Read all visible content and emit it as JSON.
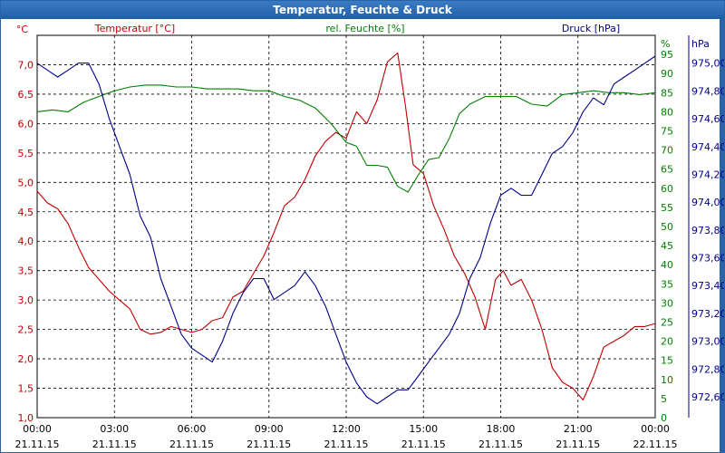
{
  "window": {
    "title": "Temperatur, Feuchte & Druck"
  },
  "chart_data": {
    "type": "line",
    "title": "Temperatur, Feuchte & Druck",
    "x_ticks": [
      {
        "time": "00:00",
        "date": "21.11.15"
      },
      {
        "time": "03:00",
        "date": "21.11.15"
      },
      {
        "time": "06:00",
        "date": "21.11.15"
      },
      {
        "time": "09:00",
        "date": "21.11.15"
      },
      {
        "time": "12:00",
        "date": "21.11.15"
      },
      {
        "time": "15:00",
        "date": "21.11.15"
      },
      {
        "time": "18:00",
        "date": "21.11.15"
      },
      {
        "time": "21:00",
        "date": "21.11.15"
      },
      {
        "time": "00:00",
        "date": "22.11.15"
      }
    ],
    "xlim_hours": [
      0,
      24
    ],
    "axes": {
      "left": {
        "unit": "°C",
        "ylim": [
          1.0,
          7.5
        ],
        "ticks": [
          "1,0",
          "1,5",
          "2,0",
          "2,5",
          "3,0",
          "3,5",
          "4,0",
          "4,5",
          "5,0",
          "5,5",
          "6,0",
          "6,5",
          "7,0"
        ],
        "values": [
          1.0,
          1.5,
          2.0,
          2.5,
          3.0,
          3.5,
          4.0,
          4.5,
          5.0,
          5.5,
          6.0,
          6.5,
          7.0
        ],
        "color": "#c00000"
      },
      "mid": {
        "unit": "%",
        "ylim": [
          0,
          100
        ],
        "ticks": [
          "0",
          "5",
          "10",
          "15",
          "20",
          "25",
          "30",
          "35",
          "40",
          "45",
          "50",
          "55",
          "60",
          "65",
          "70",
          "75",
          "80",
          "85",
          "90",
          "95"
        ],
        "values": [
          0,
          5,
          10,
          15,
          20,
          25,
          30,
          35,
          40,
          45,
          50,
          55,
          60,
          65,
          70,
          75,
          80,
          85,
          90,
          95
        ],
        "color": "#008000"
      },
      "right": {
        "unit": "hPa",
        "ylim": [
          972.45,
          975.2
        ],
        "ticks": [
          "972,60",
          "972,80",
          "973,00",
          "973,20",
          "973,40",
          "973,60",
          "973,80",
          "974,00",
          "974,20",
          "974,40",
          "974,60",
          "974,80",
          "975,00"
        ],
        "values": [
          972.6,
          972.8,
          973.0,
          973.2,
          973.4,
          973.6,
          973.8,
          974.0,
          974.2,
          974.4,
          974.6,
          974.8,
          975.0
        ],
        "color": "#00008b"
      }
    },
    "series": [
      {
        "name": "Temperatur [°C]",
        "axis": "left",
        "color": "#c00000",
        "x": [
          0,
          0.4,
          0.8,
          1.2,
          1.6,
          2.0,
          2.4,
          2.8,
          3.2,
          3.6,
          4.0,
          4.4,
          4.8,
          5.2,
          5.6,
          6.0,
          6.4,
          6.8,
          7.2,
          7.6,
          8.0,
          8.4,
          8.8,
          9.2,
          9.6,
          10.0,
          10.4,
          10.8,
          11.2,
          11.6,
          12.0,
          12.4,
          12.8,
          13.2,
          13.6,
          14.0,
          14.3,
          14.6,
          15.0,
          15.4,
          15.8,
          16.2,
          16.6,
          17.0,
          17.4,
          17.8,
          18.1,
          18.4,
          18.8,
          19.2,
          19.6,
          20.0,
          20.4,
          20.8,
          21.2,
          21.6,
          22.0,
          22.4,
          22.8,
          23.2,
          23.6,
          24.0
        ],
        "values": [
          4.85,
          4.65,
          4.55,
          4.3,
          3.9,
          3.55,
          3.35,
          3.15,
          3.0,
          2.85,
          2.5,
          2.42,
          2.45,
          2.55,
          2.5,
          2.45,
          2.5,
          2.65,
          2.7,
          3.05,
          3.15,
          3.45,
          3.75,
          4.15,
          4.6,
          4.75,
          5.05,
          5.45,
          5.7,
          5.85,
          5.75,
          6.2,
          6.0,
          6.4,
          7.05,
          7.2,
          6.3,
          5.3,
          5.15,
          4.6,
          4.2,
          3.75,
          3.45,
          3.05,
          2.5,
          3.35,
          3.5,
          3.25,
          3.35,
          3.0,
          2.5,
          1.85,
          1.6,
          1.5,
          1.3,
          1.7,
          2.2,
          2.3,
          2.4,
          2.55,
          2.55,
          2.6
        ]
      },
      {
        "name": "rel. Feuchte [%]",
        "axis": "mid",
        "color": "#008000",
        "x": [
          0,
          0.6,
          1.2,
          1.8,
          2.4,
          3.0,
          3.6,
          4.2,
          4.8,
          5.4,
          6.0,
          6.6,
          7.2,
          7.8,
          8.4,
          9.0,
          9.6,
          10.2,
          10.8,
          11.4,
          12.0,
          12.4,
          12.8,
          13.2,
          13.6,
          14.0,
          14.4,
          14.8,
          15.2,
          15.6,
          16.0,
          16.4,
          16.8,
          17.4,
          18.0,
          18.6,
          19.2,
          19.8,
          20.4,
          21.0,
          21.6,
          22.2,
          22.8,
          23.4,
          24.0
        ],
        "values": [
          80,
          80.5,
          80,
          82.5,
          84,
          85.5,
          86.5,
          87,
          87,
          86.5,
          86.5,
          86,
          86,
          86,
          85.5,
          85.5,
          84,
          83,
          81,
          77,
          72,
          71,
          66,
          66,
          65.5,
          60.5,
          59,
          63.5,
          67.5,
          68,
          73,
          79.5,
          82,
          84,
          84,
          84,
          82,
          81.5,
          84.5,
          85,
          85.5,
          85,
          85,
          84.5,
          85
        ]
      },
      {
        "name": "Druck [hPa]",
        "axis": "right",
        "color": "#00008b",
        "x": [
          0,
          0.4,
          0.8,
          1.2,
          1.6,
          2.0,
          2.4,
          2.8,
          3.2,
          3.6,
          4.0,
          4.4,
          4.8,
          5.2,
          5.6,
          6.0,
          6.4,
          6.8,
          7.2,
          7.6,
          8.0,
          8.4,
          8.8,
          9.2,
          9.6,
          10.0,
          10.4,
          10.8,
          11.2,
          11.6,
          12.0,
          12.4,
          12.8,
          13.2,
          13.6,
          14.0,
          14.4,
          14.8,
          15.2,
          15.6,
          16.0,
          16.4,
          16.8,
          17.2,
          17.6,
          18.0,
          18.4,
          18.8,
          19.2,
          19.6,
          20.0,
          20.4,
          20.8,
          21.2,
          21.6,
          22.0,
          22.4,
          22.8,
          23.2,
          23.6,
          24.0
        ],
        "values": [
          975.0,
          974.95,
          974.9,
          974.95,
          975.0,
          975.0,
          974.85,
          974.6,
          974.4,
          974.2,
          973.9,
          973.75,
          973.45,
          973.25,
          973.05,
          972.95,
          972.9,
          972.85,
          973.0,
          973.2,
          973.35,
          973.45,
          973.45,
          973.3,
          973.35,
          973.4,
          973.5,
          973.4,
          973.25,
          973.05,
          972.85,
          972.7,
          972.6,
          972.55,
          972.6,
          972.65,
          972.65,
          972.75,
          972.85,
          972.95,
          973.05,
          973.2,
          973.45,
          973.6,
          973.85,
          974.05,
          974.1,
          974.05,
          974.05,
          974.2,
          974.35,
          974.4,
          974.5,
          974.65,
          974.75,
          974.7,
          974.85,
          974.9,
          974.95,
          975.0,
          975.05
        ]
      }
    ]
  }
}
